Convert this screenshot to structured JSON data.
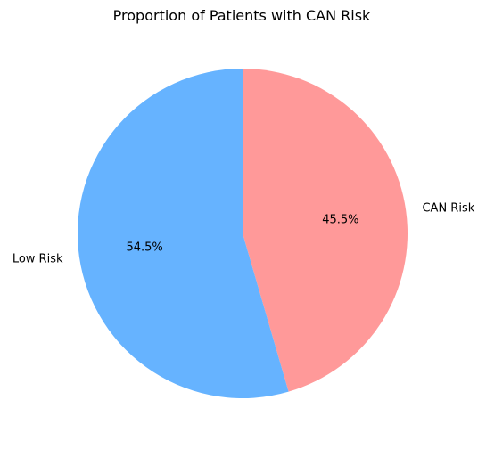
{
  "chart_data": {
    "type": "pie",
    "title": "Proportion of Patients with CAN Risk",
    "start_angle_deg": 90,
    "direction": "clockwise",
    "slices": [
      {
        "label": "CAN Risk",
        "value": 45.5,
        "pct_label": "45.5%",
        "color": "#ff9999"
      },
      {
        "label": "Low Risk",
        "value": 54.5,
        "pct_label": "54.5%",
        "color": "#66b3ff"
      }
    ]
  }
}
